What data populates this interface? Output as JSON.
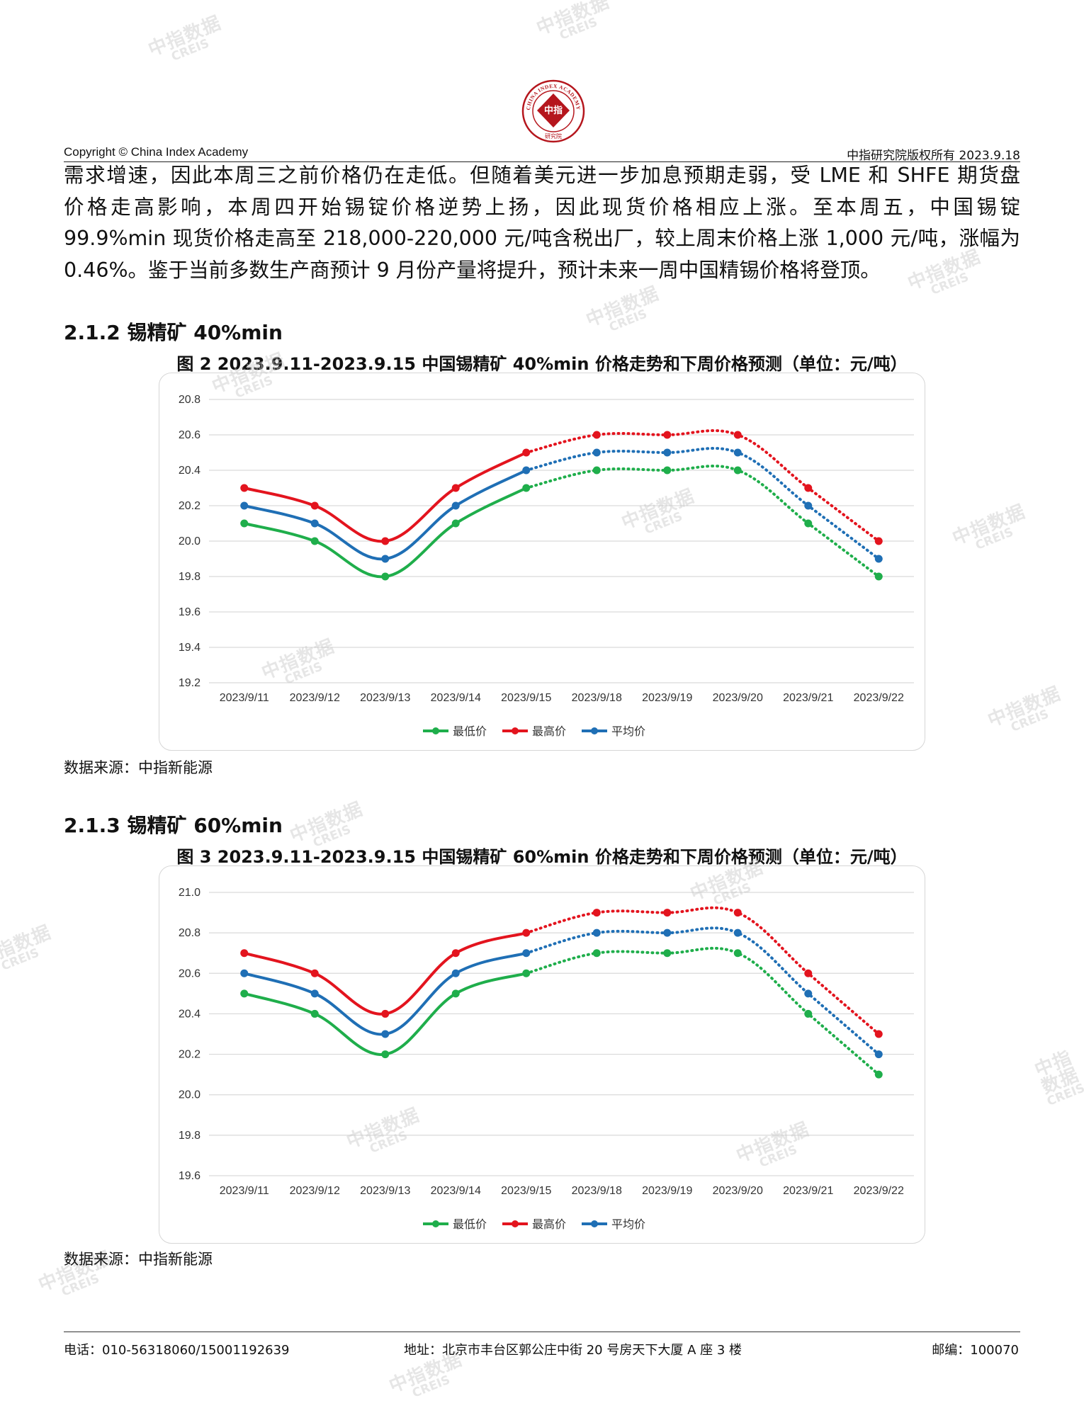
{
  "header": {
    "copyright": "Copyright © China Index Academy",
    "rights": "中指研究院版权所有 2023.9.18",
    "logo": {
      "top_text": "CHINA INDEX ACADEMY",
      "center_text": "中指",
      "bottom_text": "研究院"
    }
  },
  "watermark": {
    "cn": "中指数据",
    "en": "CREIS"
  },
  "paragraph_lines": [
    "需求增速，因此本周三之前价格仍在走低。但随着美元进一步加息预期走弱，受 LME 和 SHFE 期货盘",
    "价格走高影响，本周四开始锡锭价格逆势上扬，因此现货价格相应上涨。至本周五，中国锡锭",
    "99.9%min 现货价格走高至 218,000-220,000 元/吨含税出厂，较上周末价格上涨 1,000 元/吨，涨幅为",
    "0.46%。鉴于当前多数生产商预计 9 月份产量将提升，预计未来一周中国精锡价格将登顶。"
  ],
  "sections": [
    {
      "heading": "2.1.2 锡精矿 40%min",
      "figure_title": "图 2 2023.9.11-2023.9.15 中国锡精矿 40%min 价格走势和下周价格预测（单位：元/吨）",
      "source": "数据来源：中指新能源"
    },
    {
      "heading": "2.1.3 锡精矿 60%min",
      "figure_title": "图 3 2023.9.11-2023.9.15 中国锡精矿 60%min 价格走势和下周价格预测（单位：元/吨）",
      "source": "数据来源：中指新能源"
    }
  ],
  "chart_data": [
    {
      "type": "line",
      "categories": [
        "2023/9/11",
        "2023/9/12",
        "2023/9/13",
        "2023/9/14",
        "2023/9/15",
        "2023/9/18",
        "2023/9/19",
        "2023/9/20",
        "2023/9/21",
        "2023/9/22"
      ],
      "y_ticks": [
        "19.2",
        "19.4",
        "19.6",
        "19.8",
        "20.0",
        "20.2",
        "20.4",
        "20.6",
        "20.8"
      ],
      "ylim": [
        19.2,
        20.8
      ],
      "grid": true,
      "legend_position": "bottom",
      "forecast_from_index": 4,
      "series": [
        {
          "name": "最低价",
          "color": "#1fae4b",
          "values": [
            20.1,
            20.0,
            19.8,
            20.1,
            20.3,
            20.4,
            20.4,
            20.4,
            20.1,
            19.8
          ]
        },
        {
          "name": "最高价",
          "color": "#e3141e",
          "values": [
            20.3,
            20.2,
            20.0,
            20.3,
            20.5,
            20.6,
            20.6,
            20.6,
            20.3,
            20.0
          ]
        },
        {
          "name": "平均价",
          "color": "#1f6fb5",
          "values": [
            20.2,
            20.1,
            19.9,
            20.2,
            20.4,
            20.5,
            20.5,
            20.5,
            20.2,
            19.9
          ]
        }
      ]
    },
    {
      "type": "line",
      "categories": [
        "2023/9/11",
        "2023/9/12",
        "2023/9/13",
        "2023/9/14",
        "2023/9/15",
        "2023/9/18",
        "2023/9/19",
        "2023/9/20",
        "2023/9/21",
        "2023/9/22"
      ],
      "y_ticks": [
        "19.6",
        "19.8",
        "20.0",
        "20.2",
        "20.4",
        "20.6",
        "20.8",
        "21.0"
      ],
      "ylim": [
        19.6,
        21.0
      ],
      "grid": true,
      "legend_position": "bottom",
      "forecast_from_index": 4,
      "series": [
        {
          "name": "最低价",
          "color": "#1fae4b",
          "values": [
            20.5,
            20.4,
            20.2,
            20.5,
            20.6,
            20.7,
            20.7,
            20.7,
            20.4,
            20.1
          ]
        },
        {
          "name": "最高价",
          "color": "#e3141e",
          "values": [
            20.7,
            20.6,
            20.4,
            20.7,
            20.8,
            20.9,
            20.9,
            20.9,
            20.6,
            20.3
          ]
        },
        {
          "name": "平均价",
          "color": "#1f6fb5",
          "values": [
            20.6,
            20.5,
            20.3,
            20.6,
            20.7,
            20.8,
            20.8,
            20.8,
            20.5,
            20.2
          ]
        }
      ]
    }
  ],
  "footer": {
    "phone": "电话：010-56318060/15001192639",
    "address": "地址：北京市丰台区郭公庄中街 20 号房天下大厦 A 座 3 楼",
    "postcode": "邮编：100070"
  }
}
